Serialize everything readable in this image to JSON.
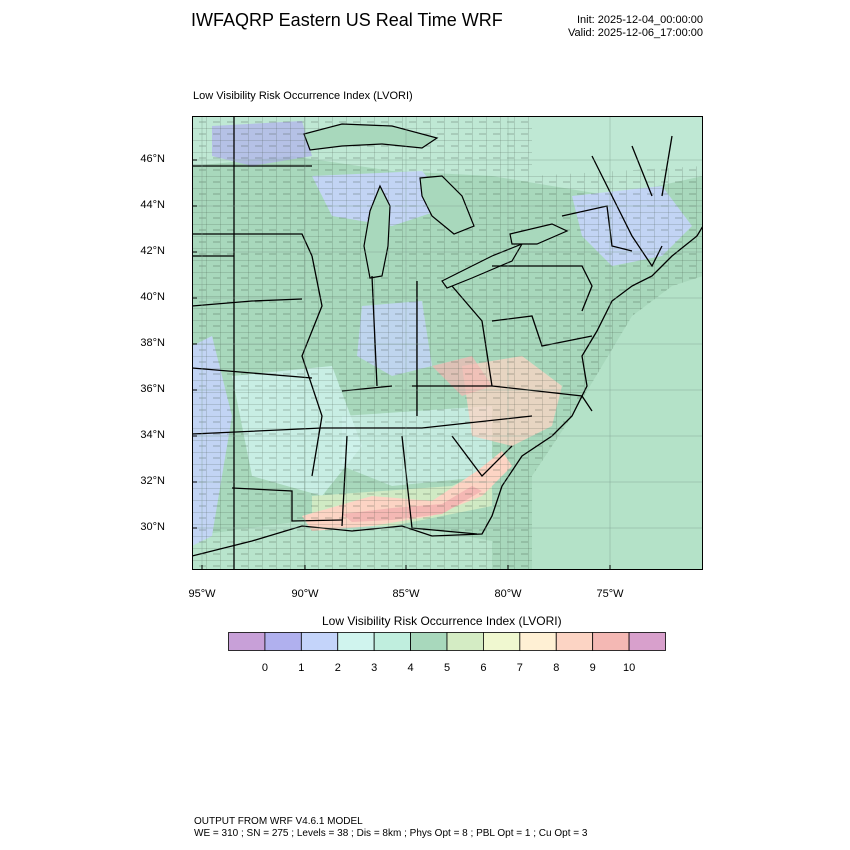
{
  "header": {
    "title": "IWFAQRP Eastern US Real Time WRF",
    "init": "Init: 2025-12-04_00:00:00",
    "valid": "Valid: 2025-12-06_17:00:00"
  },
  "map": {
    "subtitle": "Low Visibility Risk Occurrence Index   (LVORI)",
    "lat_labels": [
      "46°N",
      "44°N",
      "42°N",
      "40°N",
      "38°N",
      "36°N",
      "34°N",
      "32°N",
      "30°N"
    ],
    "lon_labels": [
      "95°W",
      "90°W",
      "85°W",
      "80°W",
      "75°W"
    ]
  },
  "colorbar": {
    "title": "Low Visibility Risk Occurrence Index  (LVORI)",
    "labels": [
      "0",
      "1",
      "2",
      "3",
      "4",
      "5",
      "6",
      "7",
      "8",
      "9",
      "10"
    ],
    "colors": [
      "#c8a0d8",
      "#b0b0ee",
      "#c4d4fa",
      "#d0f4ee",
      "#c0eede",
      "#a8d8bc",
      "#d4ecc4",
      "#f0f8d0",
      "#fff0d4",
      "#fcd4c4",
      "#f4b8b4",
      "#d8a0cc"
    ]
  },
  "footer": {
    "line1": "OUTPUT FROM WRF V4.6.1 MODEL",
    "line2": "WE = 310 ; SN = 275 ; Levels = 38 ; Dis = 8km ; Phys Opt = 8 ; PBL Opt = 1 ; Cu Opt = 3"
  }
}
